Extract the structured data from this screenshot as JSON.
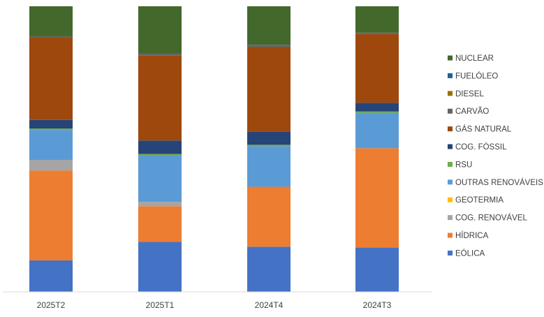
{
  "chart_data": {
    "type": "bar",
    "stacked": true,
    "percent_stacked": true,
    "categories": [
      "2025T2",
      "2025T1",
      "2024T4",
      "2024T3"
    ],
    "ylim": [
      0,
      100
    ],
    "grid": false,
    "legend_position": "right",
    "series": [
      {
        "name": "EÓLICA",
        "color": "#4472C4",
        "values": [
          11.0,
          17.5,
          15.8,
          15.5
        ]
      },
      {
        "name": "HÍDRICA",
        "color": "#ED7D31",
        "values": [
          31.5,
          12.5,
          21.0,
          34.8
        ]
      },
      {
        "name": "COG. RENOVÁVEL",
        "color": "#A5A5A5",
        "values": [
          3.7,
          1.5,
          0.0,
          0.0
        ]
      },
      {
        "name": "GEOTERMIA",
        "color": "#FFC000",
        "values": [
          0.0,
          0.0,
          0.0,
          0.0
        ]
      },
      {
        "name": "OUTRAS RENOVÁVEIS",
        "color": "#5B9BD5",
        "values": [
          10.5,
          16.3,
          14.2,
          12.4
        ]
      },
      {
        "name": "RSU",
        "color": "#70AD47",
        "values": [
          0.5,
          0.5,
          0.5,
          0.5
        ]
      },
      {
        "name": "COG. FÓSSIL",
        "color": "#264478",
        "values": [
          3.0,
          4.7,
          4.5,
          3.0
        ]
      },
      {
        "name": "GÁS NATURAL",
        "color": "#9E480E",
        "values": [
          28.8,
          29.7,
          29.7,
          24.1
        ]
      },
      {
        "name": "CARVÃO",
        "color": "#636363",
        "values": [
          0.5,
          0.8,
          0.8,
          0.5
        ]
      },
      {
        "name": "DIESEL",
        "color": "#997300",
        "values": [
          0.0,
          0.0,
          0.0,
          0.0
        ]
      },
      {
        "name": "FUELÓLEO",
        "color": "#255E91",
        "values": [
          0.0,
          0.0,
          0.0,
          0.0
        ]
      },
      {
        "name": "NUCLEAR",
        "color": "#43682B",
        "values": [
          10.5,
          16.5,
          13.5,
          9.2
        ]
      }
    ]
  }
}
